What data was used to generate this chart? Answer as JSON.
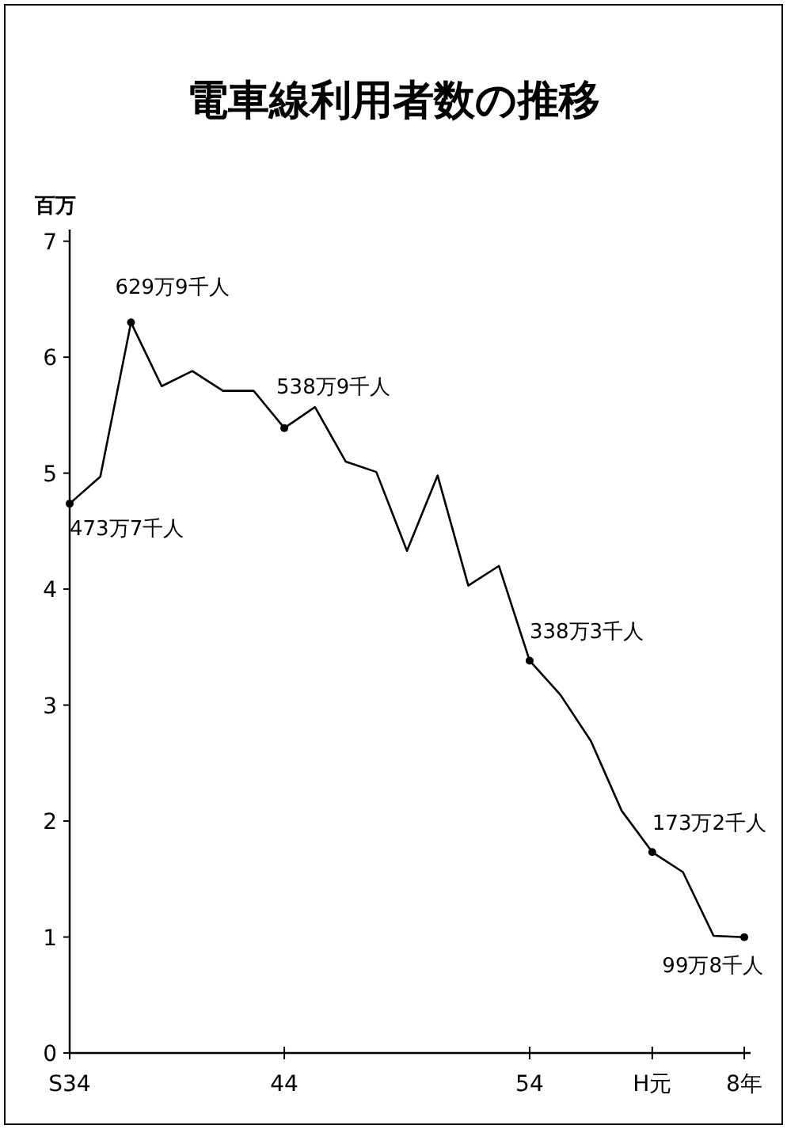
{
  "chart_data": {
    "type": "line",
    "title": "電車線利用者数の推移",
    "ylabel": "百万",
    "categories": [
      "S34",
      null,
      null,
      null,
      null,
      null,
      null,
      "44",
      null,
      null,
      null,
      null,
      null,
      null,
      null,
      "54",
      null,
      null,
      null,
      "H元",
      null,
      null,
      "8年"
    ],
    "series": [
      {
        "color": "#000000",
        "values": [
          4.737,
          4.97,
          6.299,
          5.75,
          5.88,
          5.71,
          5.71,
          5.389,
          5.57,
          5.1,
          5.01,
          4.33,
          4.98,
          4.03,
          4.2,
          3.383,
          3.09,
          2.69,
          2.09,
          1.732,
          1.56,
          1.01,
          0.998
        ]
      }
    ],
    "ylim": [
      0,
      7.1
    ],
    "yticks": [
      0,
      1,
      2,
      3,
      4,
      5,
      6,
      7
    ],
    "grid": false,
    "marker": "none",
    "line_style": "solid",
    "annotations": [
      {
        "text": "473万7千人",
        "x": "S34",
        "y": 4.737
      },
      "629万9千人",
      {
        "text": "538万9千人",
        "x": "44",
        "y": 5.389
      },
      {
        "text": "338万3千人",
        "x": "54",
        "y": 3.383
      },
      {
        "text": "173万2千人",
        "x": "H元",
        "y": 1.732
      },
      {
        "text": "99万8千人",
        "x": "8年",
        "y": 0.998
      }
    ]
  }
}
